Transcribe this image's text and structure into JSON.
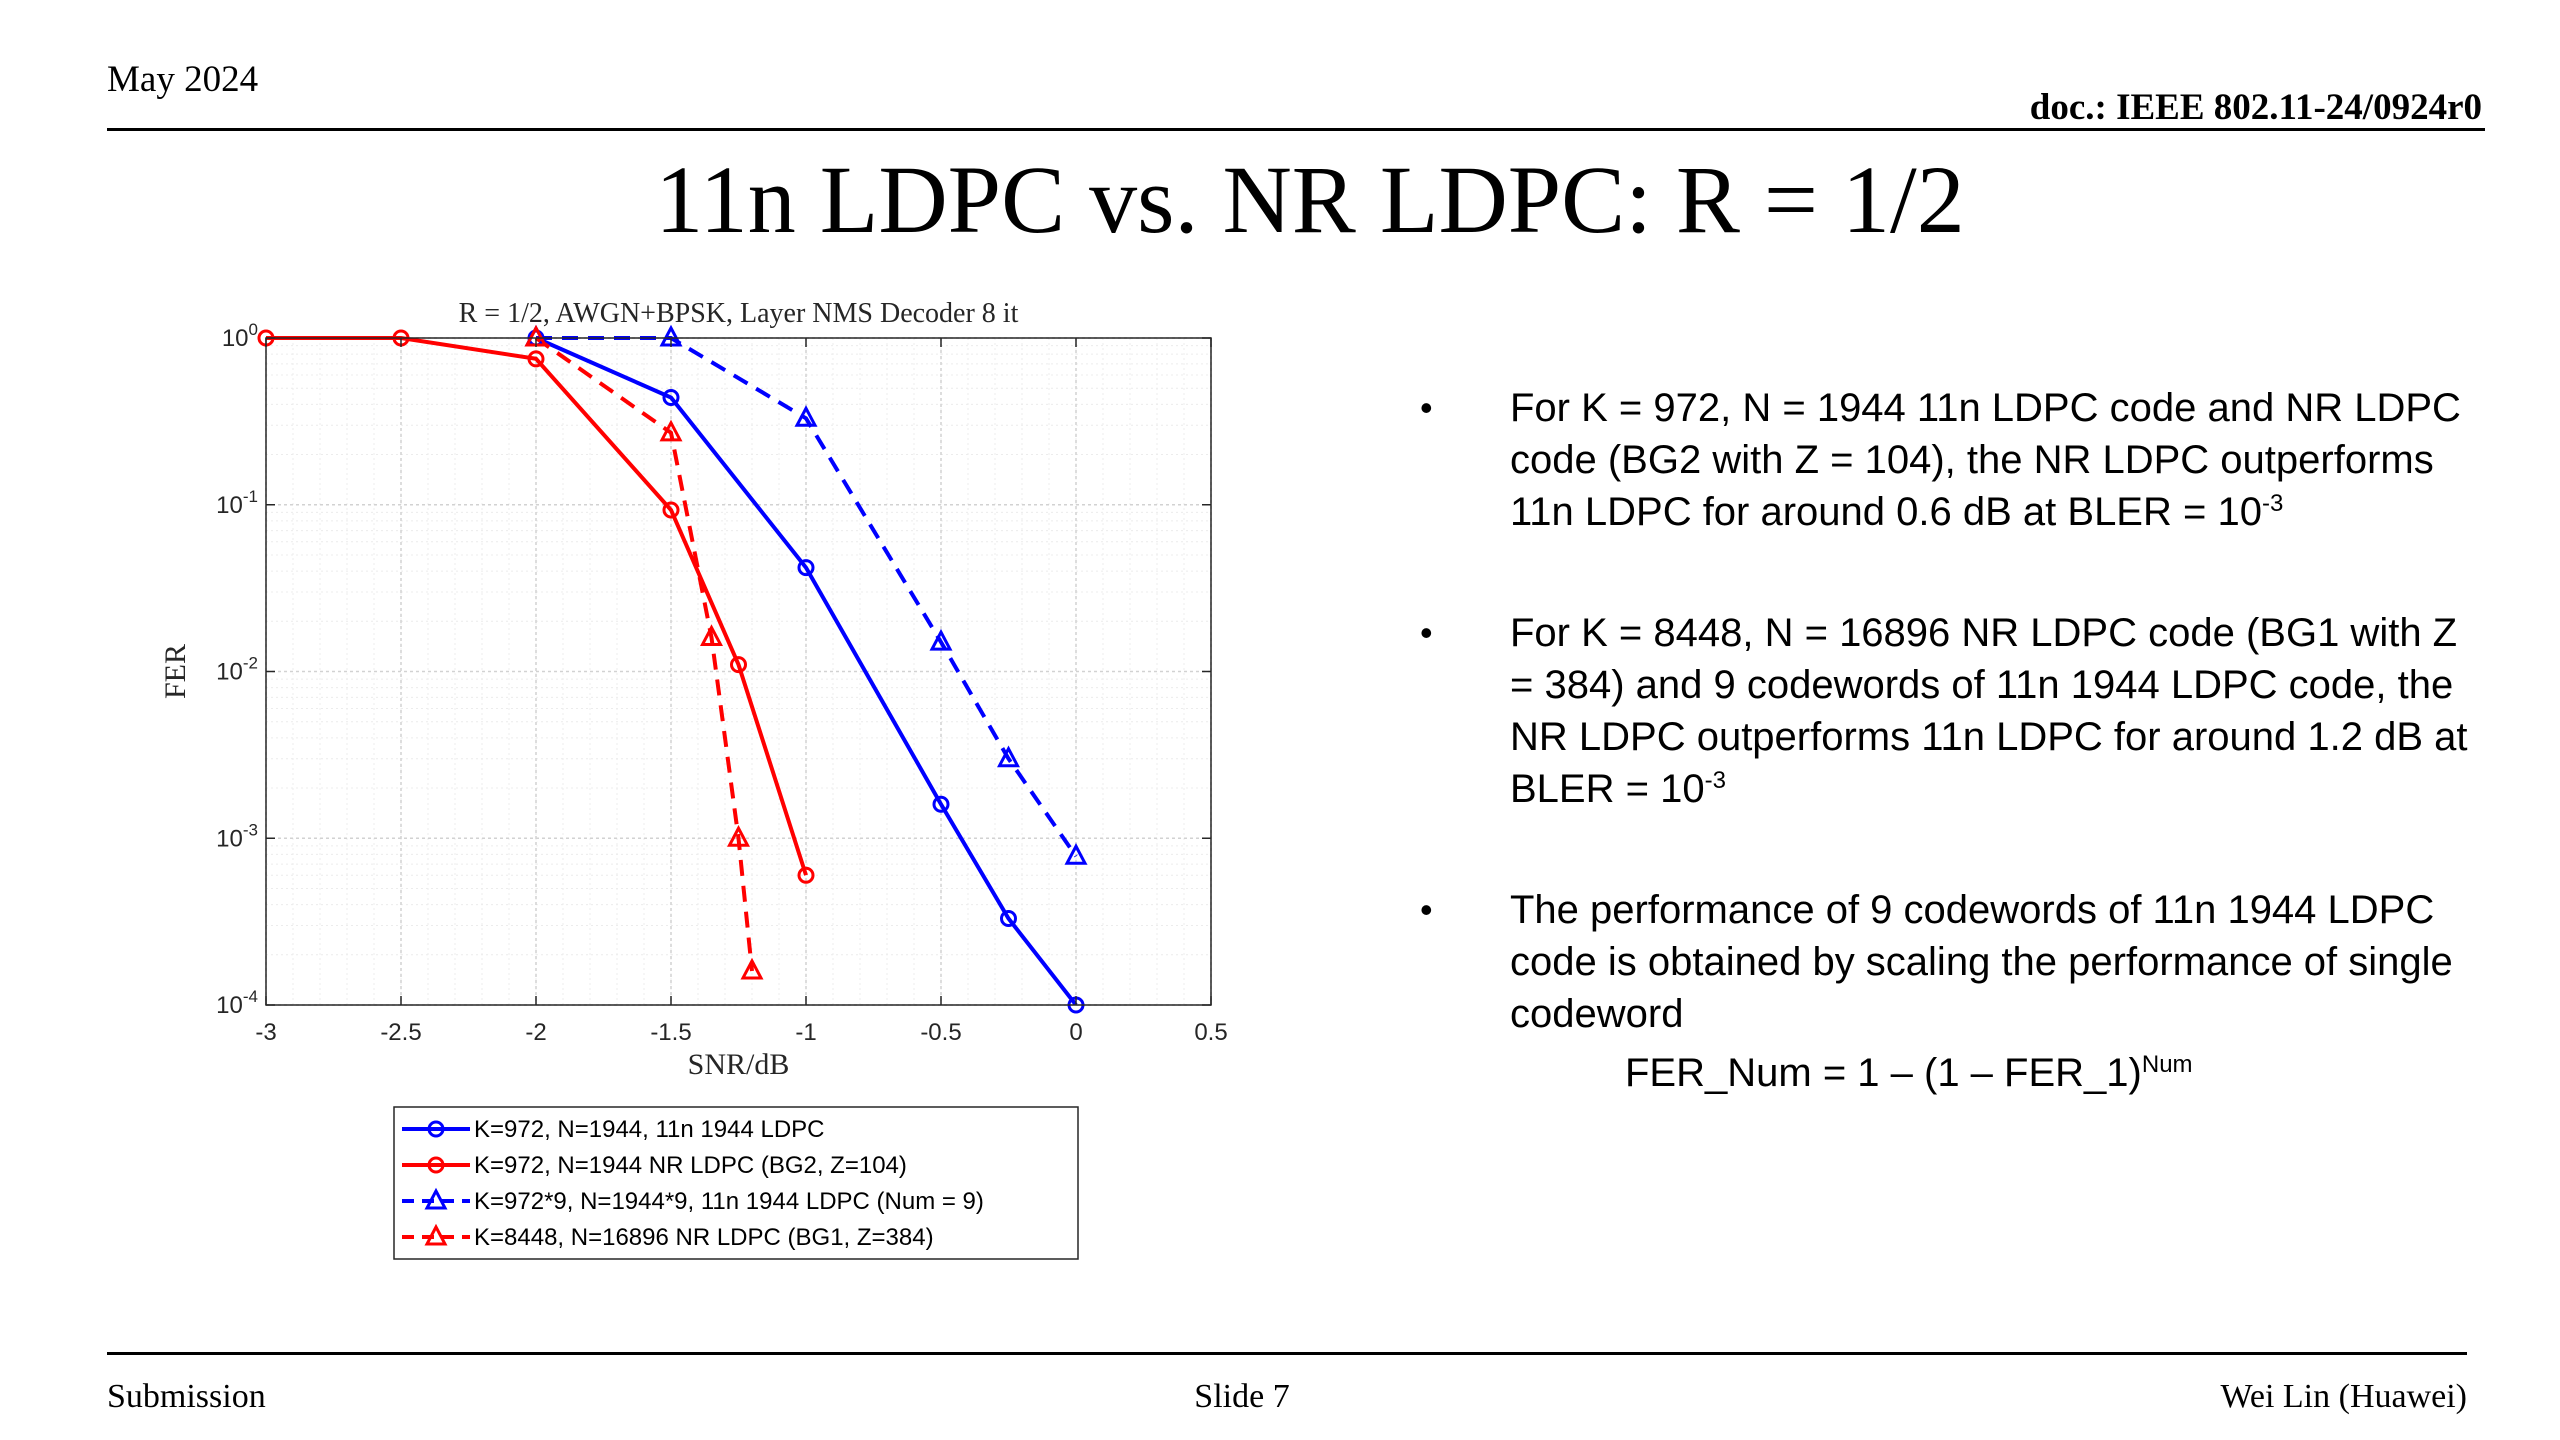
{
  "header": {
    "date": "May 2024",
    "doc_id": "doc.: IEEE 802.11-24/0924r0"
  },
  "title": "11n LDPC vs. NR LDPC: R = 1/2",
  "chart_data": {
    "type": "line",
    "title": "R = 1/2, AWGN+BPSK, Layer NMS Decoder 8 it",
    "xlabel": "SNR/dB",
    "ylabel": "FER",
    "xlim": [
      -3,
      0.5
    ],
    "ylim": [
      0.0001,
      1
    ],
    "yscale": "log",
    "grid": true,
    "legend_position": "below plot",
    "x_ticks": [
      "-3",
      "-2.5",
      "-2",
      "-1.5",
      "-1",
      "-0.5",
      "0",
      "0.5"
    ],
    "y_ticks": [
      {
        "base": "10",
        "exp": "0"
      },
      {
        "base": "10",
        "exp": "-1"
      },
      {
        "base": "10",
        "exp": "-2"
      },
      {
        "base": "10",
        "exp": "-3"
      },
      {
        "base": "10",
        "exp": "-4"
      }
    ],
    "series": [
      {
        "name": "K=972, N=1944, 11n 1944 LDPC",
        "color": "#0000ff",
        "dash": "solid",
        "marker": "circle",
        "x": [
          -2,
          -1.5,
          -1,
          -0.5,
          -0.25,
          0
        ],
        "y": [
          1.0,
          0.44,
          0.042,
          0.0016,
          0.00033,
          0.0001
        ]
      },
      {
        "name": "K=972, N=1944 NR LDPC (BG2, Z=104)",
        "color": "#ff0000",
        "dash": "solid",
        "marker": "circle",
        "x": [
          -3,
          -2.5,
          -2,
          -1.5,
          -1.25,
          -1
        ],
        "y": [
          1.0,
          1.0,
          0.75,
          0.093,
          0.011,
          0.0006
        ]
      },
      {
        "name": "K=972*9, N=1944*9, 11n 1944 LDPC (Num = 9)",
        "color": "#0000ff",
        "dash": "dashed",
        "marker": "triangle",
        "x": [
          -2,
          -1.5,
          -1,
          -0.5,
          -0.25,
          0
        ],
        "y": [
          1.0,
          1.0,
          0.33,
          0.015,
          0.003,
          0.00078
        ]
      },
      {
        "name": "K=8448, N=16896 NR LDPC (BG1, Z=384)",
        "color": "#ff0000",
        "dash": "dashed",
        "marker": "triangle",
        "x": [
          -2,
          -1.5,
          -1.35,
          -1.25,
          -1.2
        ],
        "y": [
          1.0,
          0.27,
          0.016,
          0.001,
          0.00016
        ]
      }
    ]
  },
  "bullets": [
    {
      "text": "For K = 972, N = 1944 11n LDPC code and NR LDPC code (BG2 with Z = 104), the NR LDPC outperforms 11n LDPC for around 0.6 dB at BLER = 10",
      "sup": "-3"
    },
    {
      "text": "For K = 8448, N = 16896 NR LDPC code (BG1 with Z = 384) and 9 codewords of 11n 1944 LDPC code, the NR LDPC outperforms 11n LDPC for around 1.2 dB at BLER = 10",
      "sup": "-3"
    },
    {
      "text": "The performance of 9 codewords of 11n 1944 LDPC code is obtained by scaling the performance of single codeword",
      "sup": ""
    }
  ],
  "formula": {
    "text": "FER_Num = 1 – (1 – FER_1)",
    "sup": "Num"
  },
  "footer": {
    "left": "Submission",
    "center": "Slide 7",
    "right": "Wei Lin (Huawei)"
  }
}
